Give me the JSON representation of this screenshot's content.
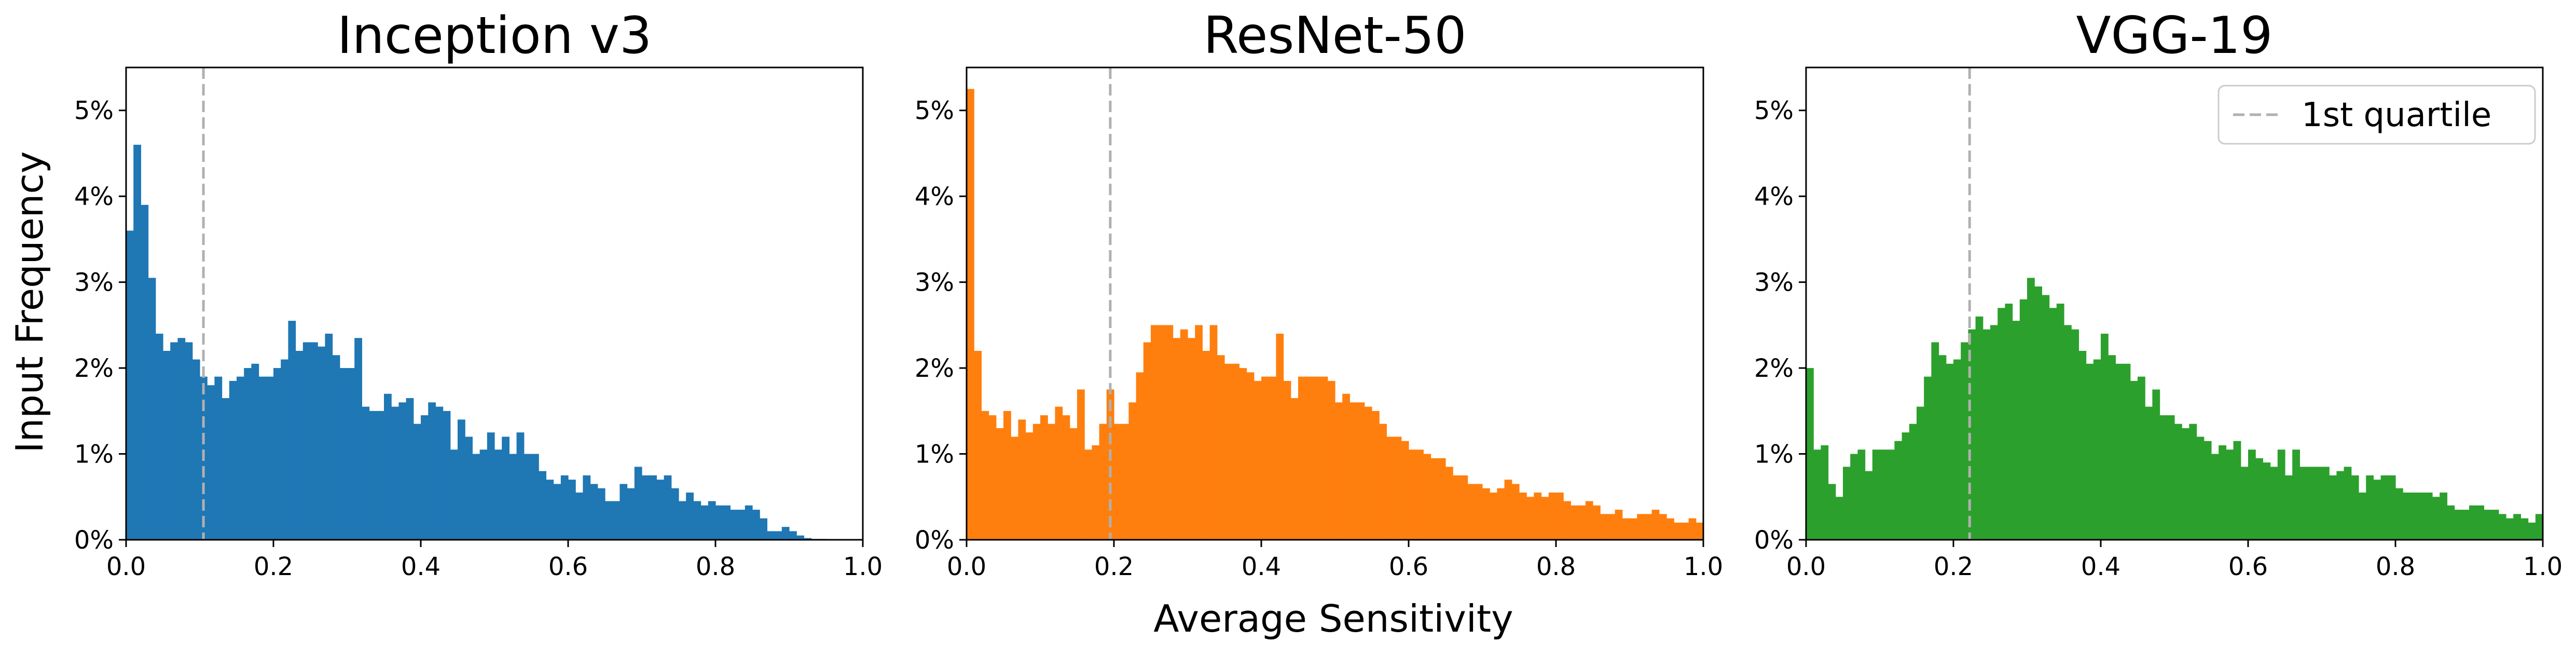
{
  "figure": {
    "ylabel": "Input Frequency",
    "xlabel": "Average Sensitivity",
    "legend_label": "1st quartile"
  },
  "chart_data": [
    {
      "type": "bar",
      "title": "Inception v3",
      "color": "#1f77b4",
      "xlim": [
        0,
        1
      ],
      "ylim": [
        0,
        5.5
      ],
      "x_ticks": [
        0,
        0.2,
        0.4,
        0.6,
        0.8,
        1.0
      ],
      "x_tick_labels": [
        "0.0",
        "0.2",
        "0.4",
        "0.6",
        "0.8",
        "1.0"
      ],
      "y_ticks": [
        0,
        1,
        2,
        3,
        4,
        5
      ],
      "y_tick_labels": [
        "0%",
        "1%",
        "2%",
        "3%",
        "4%",
        "5%"
      ],
      "bin_width": 0.01,
      "quartile": 0.105,
      "values": [
        3.6,
        4.6,
        3.9,
        3.05,
        2.4,
        2.2,
        2.3,
        2.35,
        2.3,
        2.1,
        1.9,
        1.8,
        1.9,
        1.65,
        1.85,
        1.9,
        2.0,
        2.05,
        1.9,
        1.9,
        2.0,
        2.1,
        2.55,
        2.2,
        2.3,
        2.3,
        2.25,
        2.4,
        2.15,
        2.0,
        2.0,
        2.35,
        1.55,
        1.5,
        1.5,
        1.7,
        1.55,
        1.6,
        1.65,
        1.35,
        1.45,
        1.6,
        1.55,
        1.5,
        1.05,
        1.4,
        1.2,
        1.0,
        1.05,
        1.25,
        1.05,
        1.2,
        1.0,
        1.25,
        1.0,
        1.0,
        0.8,
        0.7,
        0.65,
        0.75,
        0.7,
        0.55,
        0.75,
        0.65,
        0.6,
        0.45,
        0.45,
        0.65,
        0.6,
        0.85,
        0.75,
        0.75,
        0.7,
        0.75,
        0.6,
        0.45,
        0.55,
        0.45,
        0.4,
        0.45,
        0.4,
        0.4,
        0.35,
        0.35,
        0.4,
        0.35,
        0.25,
        0.1,
        0.1,
        0.15,
        0.1,
        0.05,
        0.02,
        0.01,
        0.01,
        0.0,
        0.0,
        0.0,
        0.0,
        0.0
      ]
    },
    {
      "type": "bar",
      "title": "ResNet-50",
      "color": "#ff7f0e",
      "xlim": [
        0,
        1
      ],
      "ylim": [
        0,
        5.5
      ],
      "x_ticks": [
        0,
        0.2,
        0.4,
        0.6,
        0.8,
        1.0
      ],
      "x_tick_labels": [
        "0.0",
        "0.2",
        "0.4",
        "0.6",
        "0.8",
        "1.0"
      ],
      "y_ticks": [
        0,
        1,
        2,
        3,
        4,
        5
      ],
      "y_tick_labels": [
        "0%",
        "1%",
        "2%",
        "3%",
        "4%",
        "5%"
      ],
      "bin_width": 0.01,
      "quartile": 0.195,
      "values": [
        5.25,
        2.2,
        1.5,
        1.45,
        1.3,
        1.5,
        1.2,
        1.4,
        1.25,
        1.35,
        1.45,
        1.35,
        1.55,
        1.45,
        1.3,
        1.75,
        1.05,
        1.1,
        1.35,
        1.75,
        1.35,
        1.35,
        1.6,
        1.95,
        2.3,
        2.5,
        2.5,
        2.5,
        2.35,
        2.45,
        2.35,
        2.5,
        2.2,
        2.5,
        2.15,
        2.05,
        2.05,
        2.0,
        1.95,
        1.85,
        1.9,
        1.9,
        2.4,
        1.85,
        1.65,
        1.9,
        1.9,
        1.9,
        1.9,
        1.85,
        1.6,
        1.7,
        1.6,
        1.6,
        1.55,
        1.5,
        1.35,
        1.2,
        1.2,
        1.15,
        1.05,
        1.05,
        1.0,
        0.95,
        0.95,
        0.85,
        0.75,
        0.75,
        0.65,
        0.65,
        0.6,
        0.55,
        0.6,
        0.7,
        0.65,
        0.55,
        0.5,
        0.55,
        0.5,
        0.55,
        0.55,
        0.45,
        0.4,
        0.4,
        0.45,
        0.4,
        0.3,
        0.3,
        0.35,
        0.25,
        0.25,
        0.3,
        0.3,
        0.35,
        0.3,
        0.25,
        0.2,
        0.2,
        0.25,
        0.2
      ]
    },
    {
      "type": "bar",
      "title": "VGG-19",
      "color": "#2ca02c",
      "xlim": [
        0,
        1
      ],
      "ylim": [
        0,
        5.5
      ],
      "x_ticks": [
        0,
        0.2,
        0.4,
        0.6,
        0.8,
        1.0
      ],
      "x_tick_labels": [
        "0.0",
        "0.2",
        "0.4",
        "0.6",
        "0.8",
        "1.0"
      ],
      "y_ticks": [
        0,
        1,
        2,
        3,
        4,
        5
      ],
      "y_tick_labels": [
        "0%",
        "1%",
        "2%",
        "3%",
        "4%",
        "5%"
      ],
      "bin_width": 0.01,
      "quartile": 0.222,
      "values": [
        2.0,
        1.05,
        1.1,
        0.65,
        0.5,
        0.85,
        1.0,
        1.05,
        0.8,
        1.05,
        1.05,
        1.05,
        1.15,
        1.25,
        1.35,
        1.55,
        1.9,
        2.3,
        2.15,
        2.05,
        2.1,
        2.3,
        2.45,
        2.6,
        2.45,
        2.5,
        2.7,
        2.75,
        2.55,
        2.8,
        3.05,
        2.95,
        2.85,
        2.7,
        2.75,
        2.5,
        2.45,
        2.2,
        2.05,
        2.1,
        2.4,
        2.15,
        2.05,
        2.05,
        1.85,
        1.9,
        1.55,
        1.75,
        1.45,
        1.45,
        1.35,
        1.3,
        1.35,
        1.2,
        1.15,
        1.0,
        1.1,
        1.05,
        1.15,
        0.85,
        1.05,
        0.95,
        0.9,
        0.85,
        1.05,
        0.75,
        1.05,
        0.85,
        0.85,
        0.85,
        0.85,
        0.75,
        0.8,
        0.85,
        0.75,
        0.55,
        0.75,
        0.7,
        0.75,
        0.75,
        0.6,
        0.55,
        0.55,
        0.55,
        0.55,
        0.5,
        0.55,
        0.4,
        0.35,
        0.35,
        0.4,
        0.4,
        0.35,
        0.35,
        0.3,
        0.25,
        0.3,
        0.25,
        0.2,
        0.3
      ]
    }
  ]
}
